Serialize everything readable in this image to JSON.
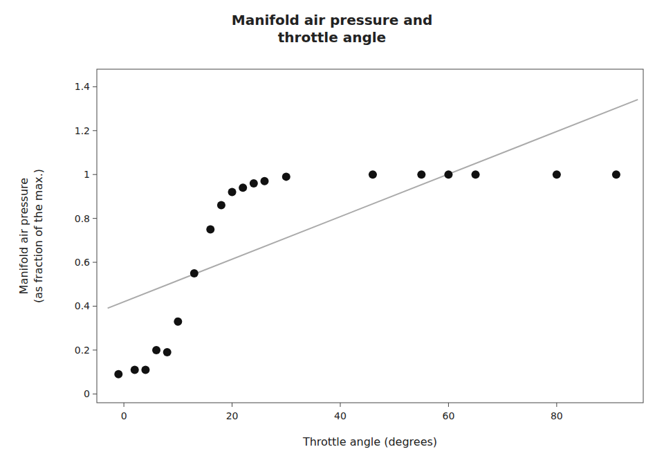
{
  "chart_data": {
    "type": "scatter",
    "title": "Manifold air pressure and\nthrottle angle",
    "xlabel": "Throttle angle (degrees)",
    "ylabel": "Manifold air pressure\n(as fraction of the max.)",
    "series": [
      {
        "type": "scatter",
        "color": "#111111",
        "marker": "circle",
        "x": [
          -1,
          2,
          4,
          6,
          8,
          10,
          13,
          16,
          18,
          20,
          22,
          24,
          26,
          30,
          46,
          55,
          60,
          65,
          80,
          91
        ],
        "values": [
          0.09,
          0.11,
          0.11,
          0.2,
          0.19,
          0.33,
          0.55,
          0.75,
          0.86,
          0.92,
          0.94,
          0.96,
          0.97,
          0.99,
          1.0,
          1.0,
          1.0,
          1.0,
          1.0,
          1.0
        ]
      },
      {
        "type": "line",
        "color": "#aaaaaa",
        "line_style": "solid",
        "x": [
          -3,
          95
        ],
        "values": [
          0.3909,
          1.3415
        ]
      }
    ],
    "xlim": [
      -5,
      96
    ],
    "ylim": [
      -0.04,
      1.48
    ],
    "xticks": [
      0,
      20,
      40,
      60,
      80
    ],
    "yticks": [
      0.0,
      0.2,
      0.4,
      0.6,
      0.8,
      1.0,
      1.2,
      1.4
    ],
    "grid": false
  }
}
